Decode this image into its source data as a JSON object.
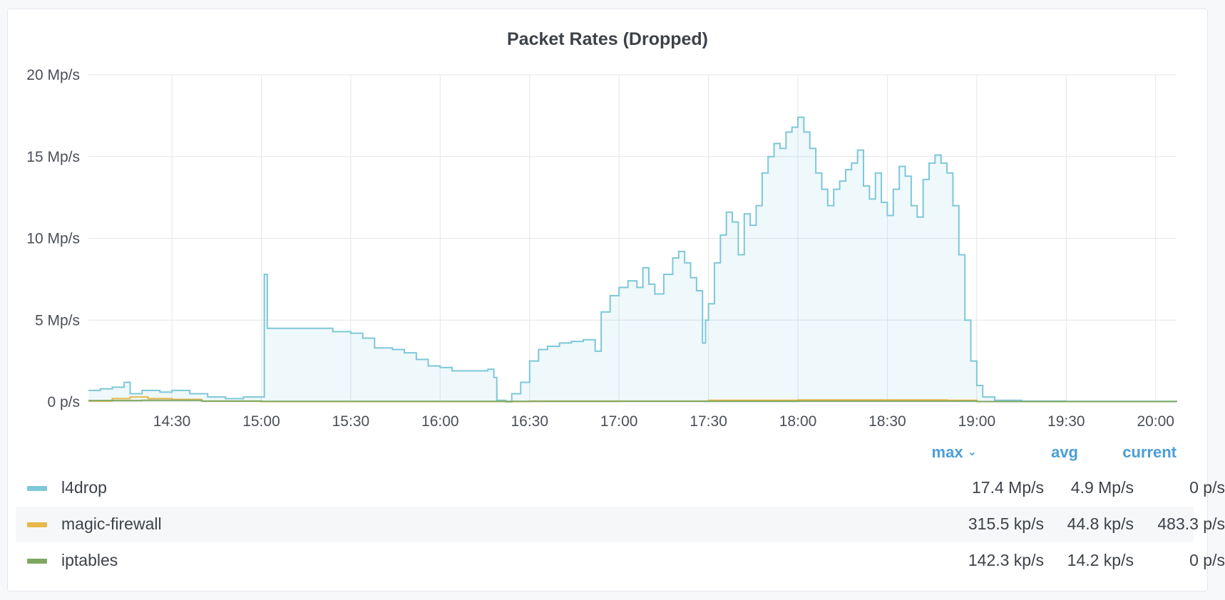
{
  "panel": {
    "title": "Packet Rates (Dropped)"
  },
  "legend": {
    "headers": {
      "max": "max",
      "avg": "avg",
      "current": "current",
      "sort_icon": "chevron-down-icon"
    },
    "items": [
      {
        "name": "l4drop",
        "color": "#7ec8d8",
        "max": "17.4 Mp/s",
        "avg": "4.9 Mp/s",
        "current": "0 p/s"
      },
      {
        "name": "magic-firewall",
        "color": "#e8b84a",
        "max": "315.5 kp/s",
        "avg": "44.8 kp/s",
        "current": "483.3 p/s"
      },
      {
        "name": "iptables",
        "color": "#7ea860",
        "max": "142.3 kp/s",
        "avg": "14.2 kp/s",
        "current": "0 p/s"
      }
    ]
  },
  "chart_data": {
    "type": "area",
    "title": "Packet Rates (Dropped)",
    "xlabel": "",
    "ylabel": "",
    "x_unit": "time (HH:MM)",
    "y_unit": "Mp/s",
    "xlim": [
      "14:02",
      "20:07"
    ],
    "ylim": [
      0,
      20
    ],
    "yticks": [
      0,
      5,
      10,
      15,
      20
    ],
    "ytick_labels": [
      "0 p/s",
      "5 Mp/s",
      "10 Mp/s",
      "15 Mp/s",
      "20 Mp/s"
    ],
    "xticks": [
      "14:30",
      "15:00",
      "15:30",
      "16:00",
      "16:30",
      "17:00",
      "17:30",
      "18:00",
      "18:30",
      "19:00",
      "19:30",
      "20:00"
    ],
    "grid": true,
    "legend_position": "bottom",
    "series": [
      {
        "name": "l4drop",
        "color": "#7ec8d8",
        "fill": true,
        "points": [
          [
            "14:02",
            0.7
          ],
          [
            "14:06",
            0.8
          ],
          [
            "14:10",
            0.9
          ],
          [
            "14:14",
            1.2
          ],
          [
            "14:16",
            0.5
          ],
          [
            "14:20",
            0.7
          ],
          [
            "14:26",
            0.6
          ],
          [
            "14:30",
            0.7
          ],
          [
            "14:36",
            0.5
          ],
          [
            "14:42",
            0.3
          ],
          [
            "14:48",
            0.2
          ],
          [
            "14:54",
            0.3
          ],
          [
            "15:00",
            0.3
          ],
          [
            "15:01",
            4.6
          ],
          [
            "15:01",
            7.8
          ],
          [
            "15:02",
            4.5
          ],
          [
            "15:10",
            4.5
          ],
          [
            "15:20",
            4.5
          ],
          [
            "15:24",
            4.3
          ],
          [
            "15:30",
            4.2
          ],
          [
            "15:34",
            3.9
          ],
          [
            "15:38",
            3.3
          ],
          [
            "15:44",
            3.2
          ],
          [
            "15:48",
            3.0
          ],
          [
            "15:52",
            2.6
          ],
          [
            "15:56",
            2.2
          ],
          [
            "16:00",
            2.1
          ],
          [
            "16:04",
            1.9
          ],
          [
            "16:10",
            1.9
          ],
          [
            "16:16",
            2.0
          ],
          [
            "16:18",
            1.5
          ],
          [
            "16:19",
            0.1
          ],
          [
            "16:22",
            0.0
          ],
          [
            "16:24",
            0.5
          ],
          [
            "16:27",
            1.2
          ],
          [
            "16:30",
            2.5
          ],
          [
            "16:33",
            3.2
          ],
          [
            "16:36",
            3.4
          ],
          [
            "16:40",
            3.6
          ],
          [
            "16:44",
            3.7
          ],
          [
            "16:48",
            3.8
          ],
          [
            "16:52",
            3.1
          ],
          [
            "16:54",
            5.5
          ],
          [
            "16:57",
            6.5
          ],
          [
            "17:00",
            7.0
          ],
          [
            "17:03",
            7.4
          ],
          [
            "17:06",
            7.0
          ],
          [
            "17:08",
            8.2
          ],
          [
            "17:10",
            7.2
          ],
          [
            "17:12",
            6.6
          ],
          [
            "17:15",
            7.8
          ],
          [
            "17:18",
            8.8
          ],
          [
            "17:20",
            9.2
          ],
          [
            "17:22",
            8.5
          ],
          [
            "17:24",
            7.6
          ],
          [
            "17:26",
            6.8
          ],
          [
            "17:28",
            3.6
          ],
          [
            "17:29",
            5.0
          ],
          [
            "17:30",
            6.0
          ],
          [
            "17:32",
            8.5
          ],
          [
            "17:34",
            10.2
          ],
          [
            "17:36",
            11.6
          ],
          [
            "17:38",
            11.0
          ],
          [
            "17:40",
            9.0
          ],
          [
            "17:42",
            11.5
          ],
          [
            "17:44",
            10.8
          ],
          [
            "17:46",
            12.0
          ],
          [
            "17:48",
            14.0
          ],
          [
            "17:50",
            15.0
          ],
          [
            "17:52",
            15.8
          ],
          [
            "17:54",
            15.5
          ],
          [
            "17:56",
            16.5
          ],
          [
            "17:58",
            16.8
          ],
          [
            "18:00",
            17.4
          ],
          [
            "18:02",
            16.5
          ],
          [
            "18:04",
            15.5
          ],
          [
            "18:06",
            14.0
          ],
          [
            "18:08",
            13.0
          ],
          [
            "18:10",
            12.0
          ],
          [
            "18:12",
            13.0
          ],
          [
            "18:14",
            13.5
          ],
          [
            "18:16",
            14.2
          ],
          [
            "18:18",
            14.6
          ],
          [
            "18:20",
            15.4
          ],
          [
            "18:22",
            13.2
          ],
          [
            "18:24",
            12.4
          ],
          [
            "18:26",
            14.0
          ],
          [
            "18:28",
            12.2
          ],
          [
            "18:30",
            11.4
          ],
          [
            "18:32",
            13.0
          ],
          [
            "18:34",
            14.4
          ],
          [
            "18:36",
            13.8
          ],
          [
            "18:38",
            12.0
          ],
          [
            "18:40",
            11.3
          ],
          [
            "18:42",
            13.6
          ],
          [
            "18:44",
            14.6
          ],
          [
            "18:46",
            15.1
          ],
          [
            "18:48",
            14.6
          ],
          [
            "18:50",
            14.0
          ],
          [
            "18:52",
            12.0
          ],
          [
            "18:54",
            9.0
          ],
          [
            "18:56",
            5.0
          ],
          [
            "18:58",
            2.5
          ],
          [
            "19:00",
            1.0
          ],
          [
            "19:02",
            0.3
          ],
          [
            "19:06",
            0.1
          ],
          [
            "19:15",
            0.05
          ],
          [
            "19:30",
            0.03
          ],
          [
            "20:07",
            0.0
          ]
        ]
      },
      {
        "name": "magic-firewall",
        "color": "#e8b84a",
        "fill": false,
        "points": [
          [
            "14:02",
            0.05
          ],
          [
            "14:10",
            0.2
          ],
          [
            "14:16",
            0.3
          ],
          [
            "14:22",
            0.2
          ],
          [
            "14:30",
            0.15
          ],
          [
            "14:40",
            0.05
          ],
          [
            "15:00",
            0.02
          ],
          [
            "16:30",
            0.05
          ],
          [
            "17:30",
            0.1
          ],
          [
            "18:00",
            0.12
          ],
          [
            "18:50",
            0.1
          ],
          [
            "19:00",
            0.02
          ],
          [
            "20:07",
            0.0
          ]
        ]
      },
      {
        "name": "iptables",
        "color": "#7ea860",
        "fill": false,
        "points": [
          [
            "14:02",
            0.08
          ],
          [
            "14:20",
            0.1
          ],
          [
            "14:40",
            0.05
          ],
          [
            "15:00",
            0.03
          ],
          [
            "17:00",
            0.04
          ],
          [
            "18:00",
            0.05
          ],
          [
            "19:00",
            0.02
          ],
          [
            "20:07",
            0.0
          ]
        ]
      }
    ]
  }
}
